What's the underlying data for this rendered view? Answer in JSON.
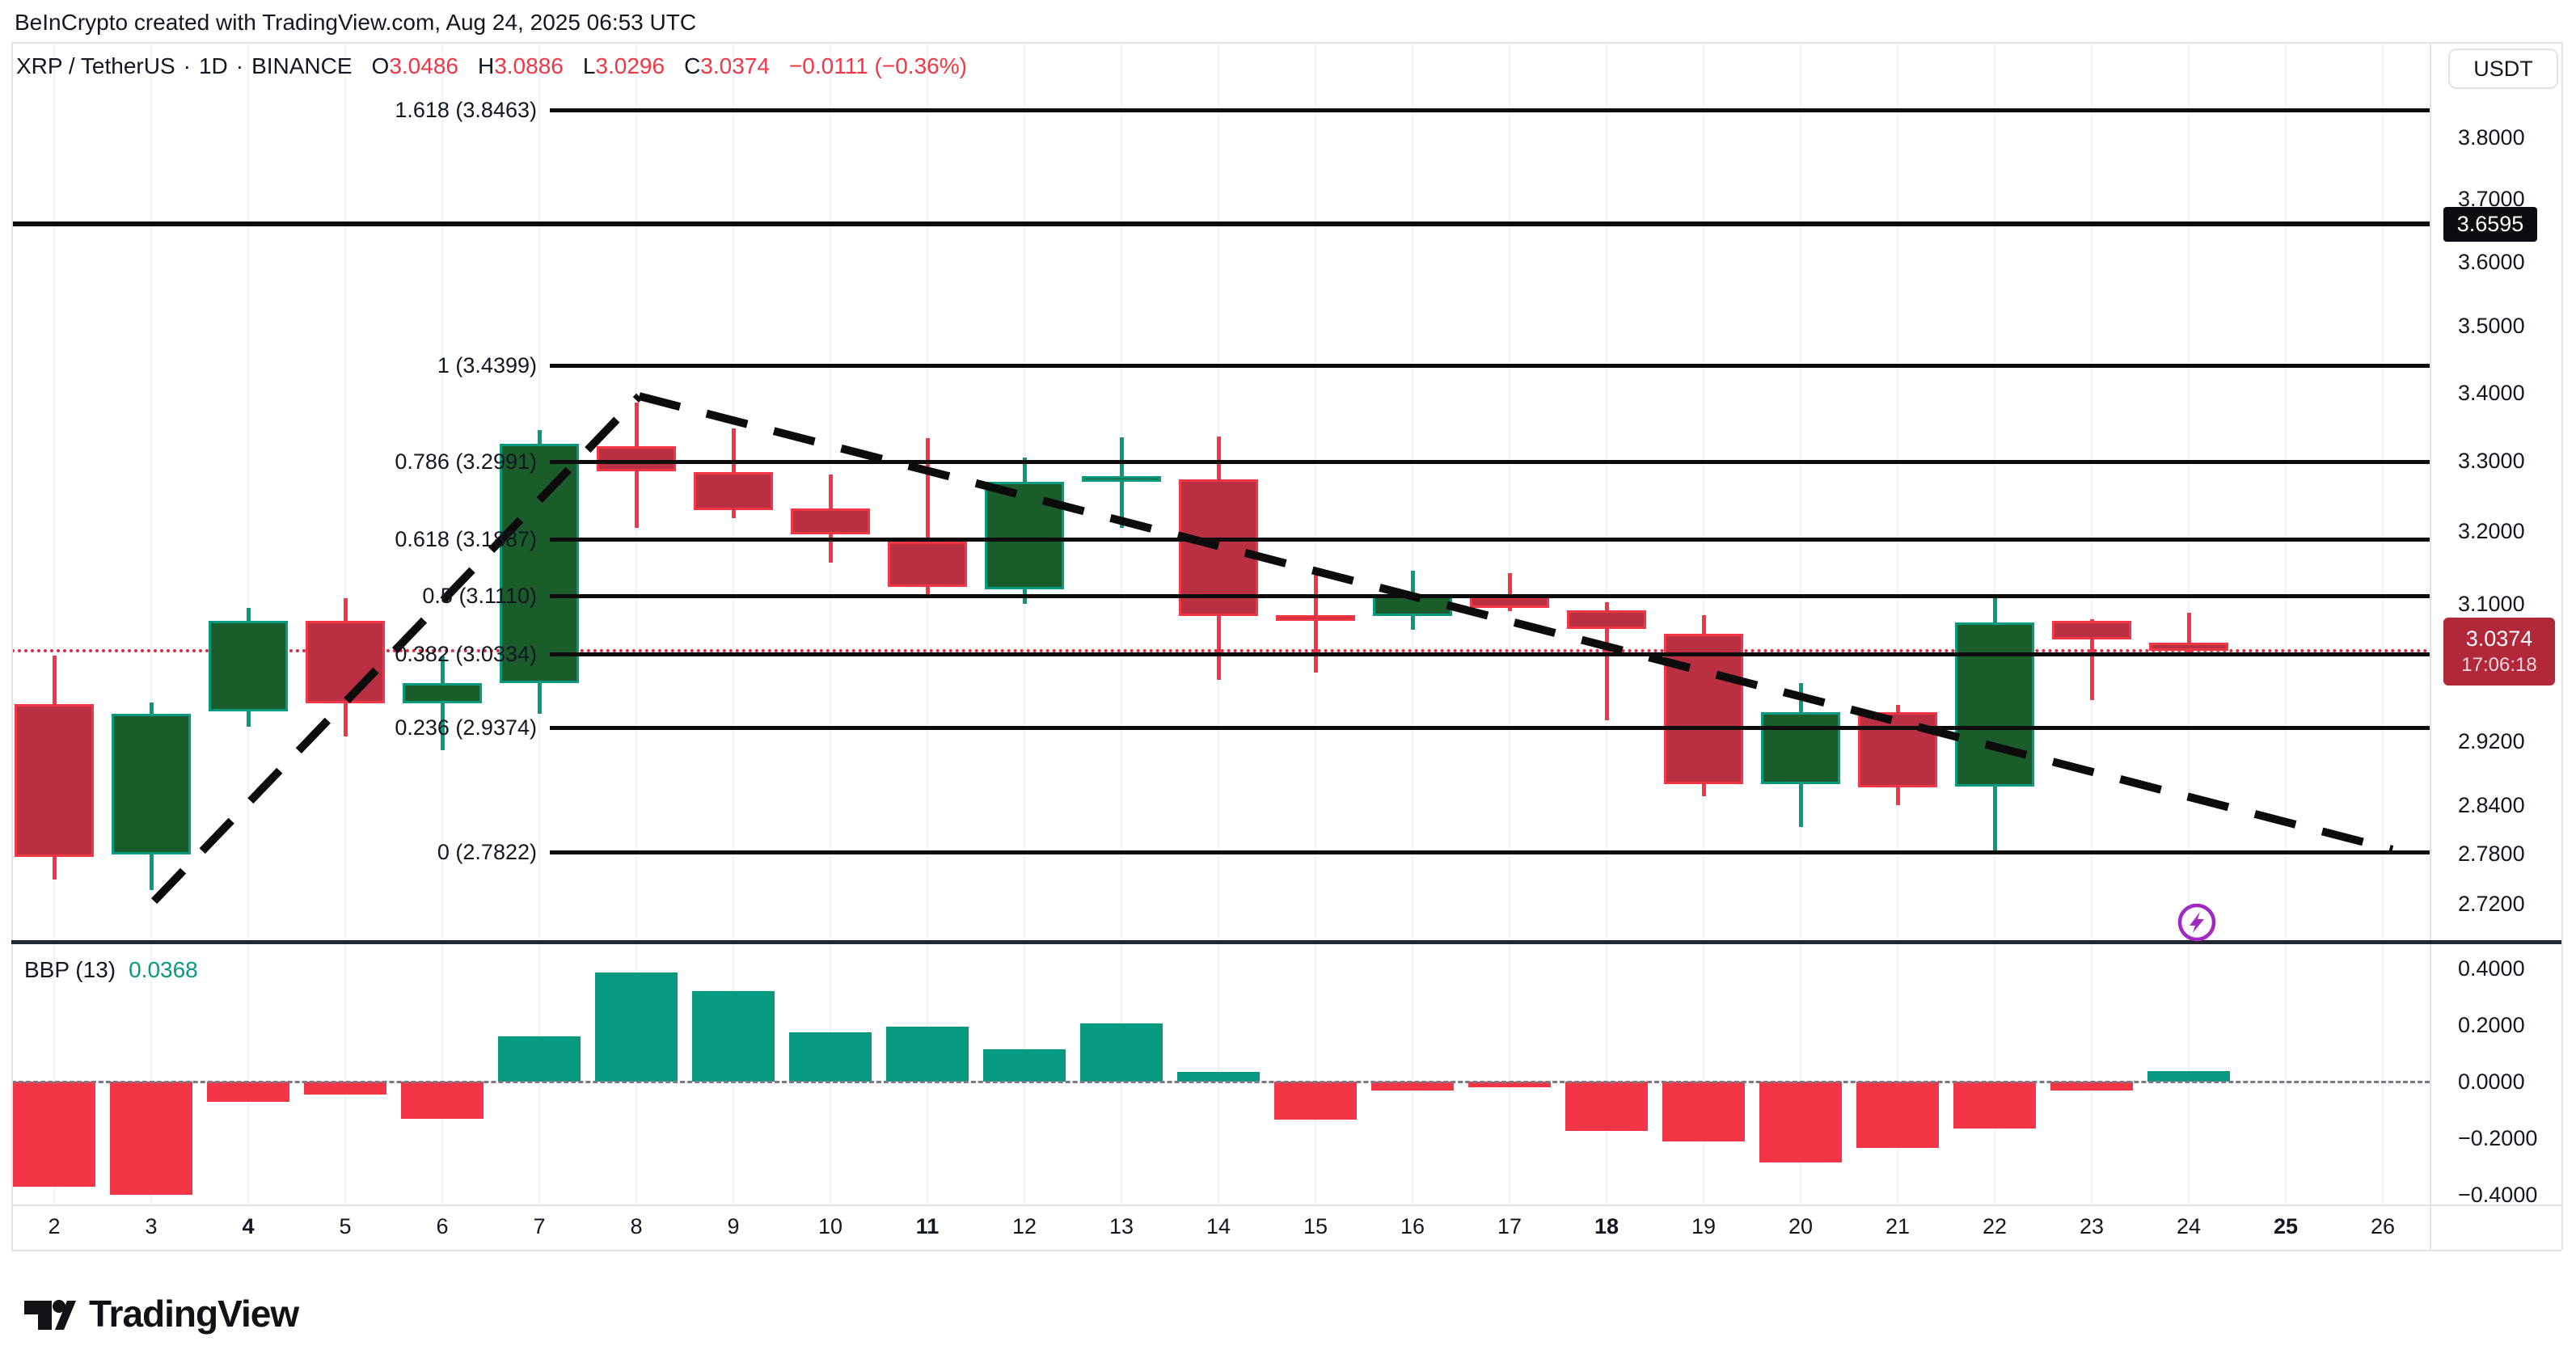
{
  "header": {
    "title": "BeInCrypto created with TradingView.com, Aug 24, 2025 06:53 UTC"
  },
  "symbol_line": {
    "name": "XRP / TetherUS",
    "sep": "·",
    "interval": "1D",
    "exchange": "BINANCE",
    "o_label": "O",
    "o": "3.0486",
    "h_label": "H",
    "h": "3.0886",
    "l_label": "L",
    "l": "3.0296",
    "c_label": "C",
    "c": "3.0374",
    "change": "−0.0111 (−0.36%)"
  },
  "bbp_header": {
    "title": "BBP (13)",
    "value": "0.0368"
  },
  "price_axis": {
    "currency": "USDT",
    "level_badge": {
      "label": "3.6595",
      "price": 3.6595
    },
    "last_badge": {
      "label": "3.0374",
      "countdown": "17:06:18",
      "price": 3.0374
    },
    "ticks": [
      {
        "label": "3.8000",
        "v": 3.8
      },
      {
        "label": "3.7000",
        "v": 3.7
      },
      {
        "label": "3.6000",
        "v": 3.6
      },
      {
        "label": "3.5000",
        "v": 3.5
      },
      {
        "label": "3.4000",
        "v": 3.4
      },
      {
        "label": "3.3000",
        "v": 3.3
      },
      {
        "label": "3.2000",
        "v": 3.2
      },
      {
        "label": "3.1000",
        "v": 3.1
      },
      {
        "label": "2.9200",
        "v": 2.92
      },
      {
        "label": "2.8400",
        "v": 2.84
      },
      {
        "label": "2.7800",
        "v": 2.78
      },
      {
        "label": "2.7200",
        "v": 2.72
      }
    ],
    "bbp_ticks": [
      {
        "label": "0.4000",
        "v": 0.4
      },
      {
        "label": "0.2000",
        "v": 0.2
      },
      {
        "label": "0.0000",
        "v": 0.0
      },
      {
        "label": "−0.2000",
        "v": -0.2
      },
      {
        "label": "−0.4000",
        "v": -0.4
      }
    ]
  },
  "time_axis": {
    "ticks": [
      {
        "t": "2",
        "day": 2,
        "bold": false
      },
      {
        "t": "3",
        "day": 3,
        "bold": false
      },
      {
        "t": "4",
        "day": 4,
        "bold": true
      },
      {
        "t": "5",
        "day": 5,
        "bold": false
      },
      {
        "t": "6",
        "day": 6,
        "bold": false
      },
      {
        "t": "7",
        "day": 7,
        "bold": false
      },
      {
        "t": "8",
        "day": 8,
        "bold": false
      },
      {
        "t": "9",
        "day": 9,
        "bold": false
      },
      {
        "t": "10",
        "day": 10,
        "bold": false
      },
      {
        "t": "11",
        "day": 11,
        "bold": true
      },
      {
        "t": "12",
        "day": 12,
        "bold": false
      },
      {
        "t": "13",
        "day": 13,
        "bold": false
      },
      {
        "t": "14",
        "day": 14,
        "bold": false
      },
      {
        "t": "15",
        "day": 15,
        "bold": false
      },
      {
        "t": "16",
        "day": 16,
        "bold": false
      },
      {
        "t": "17",
        "day": 17,
        "bold": false
      },
      {
        "t": "18",
        "day": 18,
        "bold": true
      },
      {
        "t": "19",
        "day": 19,
        "bold": false
      },
      {
        "t": "20",
        "day": 20,
        "bold": false
      },
      {
        "t": "21",
        "day": 21,
        "bold": false
      },
      {
        "t": "22",
        "day": 22,
        "bold": false
      },
      {
        "t": "23",
        "day": 23,
        "bold": false
      },
      {
        "t": "24",
        "day": 24,
        "bold": false
      },
      {
        "t": "25",
        "day": 25,
        "bold": true
      },
      {
        "t": "26",
        "day": 26,
        "bold": false
      }
    ]
  },
  "chart_data": {
    "type": "candlestick",
    "title": "XRP / TetherUS · 1D · BINANCE",
    "x_categories": [
      2,
      3,
      4,
      5,
      6,
      7,
      8,
      9,
      10,
      11,
      12,
      13,
      14,
      15,
      16,
      17,
      18,
      19,
      20,
      21,
      22,
      23,
      24,
      25,
      26
    ],
    "price_scale": "log",
    "price_range_labels": [
      3.8463,
      2.7822
    ],
    "candles": [
      {
        "day": 2,
        "o": 2.968,
        "h": 3.031,
        "l": 2.749,
        "c": 2.776
      },
      {
        "day": 3,
        "o": 2.779,
        "h": 2.97,
        "l": 2.736,
        "c": 2.955
      },
      {
        "day": 4,
        "o": 2.958,
        "h": 3.095,
        "l": 2.938,
        "c": 3.077
      },
      {
        "day": 5,
        "o": 3.077,
        "h": 3.108,
        "l": 2.926,
        "c": 2.969
      },
      {
        "day": 6,
        "o": 2.969,
        "h": 3.03,
        "l": 2.908,
        "c": 2.995
      },
      {
        "day": 7,
        "o": 2.995,
        "h": 3.345,
        "l": 2.955,
        "c": 3.325
      },
      {
        "day": 8,
        "o": 3.321,
        "h": 3.385,
        "l": 3.205,
        "c": 3.285
      },
      {
        "day": 9,
        "o": 3.284,
        "h": 3.347,
        "l": 3.218,
        "c": 3.23
      },
      {
        "day": 10,
        "o": 3.232,
        "h": 3.28,
        "l": 3.157,
        "c": 3.196
      },
      {
        "day": 11,
        "o": 3.186,
        "h": 3.333,
        "l": 3.11,
        "c": 3.123
      },
      {
        "day": 12,
        "o": 3.12,
        "h": 3.305,
        "l": 3.1,
        "c": 3.27
      },
      {
        "day": 13,
        "o": 3.272,
        "h": 3.334,
        "l": 3.205,
        "c": 3.278
      },
      {
        "day": 14,
        "o": 3.274,
        "h": 3.335,
        "l": 2.999,
        "c": 3.084
      },
      {
        "day": 15,
        "o": 3.085,
        "h": 3.14,
        "l": 3.009,
        "c": 3.083
      },
      {
        "day": 16,
        "o": 3.084,
        "h": 3.146,
        "l": 3.066,
        "c": 3.111
      },
      {
        "day": 17,
        "o": 3.11,
        "h": 3.142,
        "l": 3.09,
        "c": 3.095
      },
      {
        "day": 18,
        "o": 3.092,
        "h": 3.102,
        "l": 2.947,
        "c": 3.067
      },
      {
        "day": 19,
        "o": 3.06,
        "h": 3.085,
        "l": 2.851,
        "c": 2.866
      },
      {
        "day": 20,
        "o": 2.866,
        "h": 2.995,
        "l": 2.813,
        "c": 2.957
      },
      {
        "day": 21,
        "o": 2.957,
        "h": 2.967,
        "l": 2.84,
        "c": 2.862
      },
      {
        "day": 22,
        "o": 2.863,
        "h": 3.108,
        "l": 2.782,
        "c": 3.075
      },
      {
        "day": 23,
        "o": 3.077,
        "h": 3.08,
        "l": 2.973,
        "c": 3.052
      },
      {
        "day": 24,
        "o": 3.0486,
        "h": 3.0886,
        "l": 3.0296,
        "c": 3.0374
      }
    ],
    "indicator": {
      "name": "BBP",
      "length": 13,
      "current_value": 0.0368,
      "values": [
        {
          "day": 2,
          "v": -0.37
        },
        {
          "day": 3,
          "v": -0.4
        },
        {
          "day": 4,
          "v": -0.07
        },
        {
          "day": 5,
          "v": -0.045
        },
        {
          "day": 6,
          "v": -0.13
        },
        {
          "day": 7,
          "v": 0.16
        },
        {
          "day": 8,
          "v": 0.385
        },
        {
          "day": 9,
          "v": 0.32
        },
        {
          "day": 10,
          "v": 0.175
        },
        {
          "day": 11,
          "v": 0.195
        },
        {
          "day": 12,
          "v": 0.115
        },
        {
          "day": 13,
          "v": 0.205
        },
        {
          "day": 14,
          "v": 0.035
        },
        {
          "day": 15,
          "v": -0.135
        },
        {
          "day": 16,
          "v": -0.03
        },
        {
          "day": 17,
          "v": -0.02
        },
        {
          "day": 18,
          "v": -0.175
        },
        {
          "day": 19,
          "v": -0.21
        },
        {
          "day": 20,
          "v": -0.285
        },
        {
          "day": 21,
          "v": -0.235
        },
        {
          "day": 22,
          "v": -0.165
        },
        {
          "day": 23,
          "v": -0.03
        },
        {
          "day": 24,
          "v": 0.0368
        }
      ]
    },
    "fib_levels": [
      {
        "label": "1.618 (3.8463)",
        "ratio": 1.618,
        "price": 3.8463
      },
      {
        "label": "1 (3.4399)",
        "ratio": 1.0,
        "price": 3.4399
      },
      {
        "label": "0.786 (3.2991)",
        "ratio": 0.786,
        "price": 3.2991
      },
      {
        "label": "0.618 (3.1887)",
        "ratio": 0.618,
        "price": 3.1887
      },
      {
        "label": "0.5 (3.1110)",
        "ratio": 0.5,
        "price": 3.111
      },
      {
        "label": "0.382 (3.0334)",
        "ratio": 0.382,
        "price": 3.0334
      },
      {
        "label": "0.236 (2.9374)",
        "ratio": 0.236,
        "price": 2.9374
      },
      {
        "label": "0 (2.7822)",
        "ratio": 0.0,
        "price": 2.7822
      }
    ],
    "horizontal_level": {
      "price": 3.6595
    },
    "last_price_line": {
      "price": 3.0374
    },
    "trendlines": [
      {
        "d1": 3.03,
        "p1": 2.723,
        "d2": 8.03,
        "p2": 3.3945
      },
      {
        "d1": 8.03,
        "p1": 3.3945,
        "d2": 26.1,
        "p2": 2.785
      }
    ]
  },
  "footer": {
    "brand": "TradingView"
  },
  "icons": {
    "boost": "lightning-icon",
    "logo": "tradingview-logo"
  },
  "colors": {
    "accent_red": "#f23645",
    "teal": "#089981",
    "candle_down_fill": "#b93043",
    "candle_down_border": "#f23645",
    "candle_up_fill": "#1a5d2b",
    "candle_up_border": "#089981",
    "badge_red_bg": "#b2283a",
    "badge_black_bg": "#0c0d10",
    "line_black": "#0c0c0c",
    "dotted_price_line": "#d52f44",
    "grid": "#f0f3fa",
    "light_border": "#e0e3eb",
    "pane_divider": "#232733",
    "zero_line": "#787b86",
    "purple": "#a129c1",
    "text": "#131722"
  }
}
